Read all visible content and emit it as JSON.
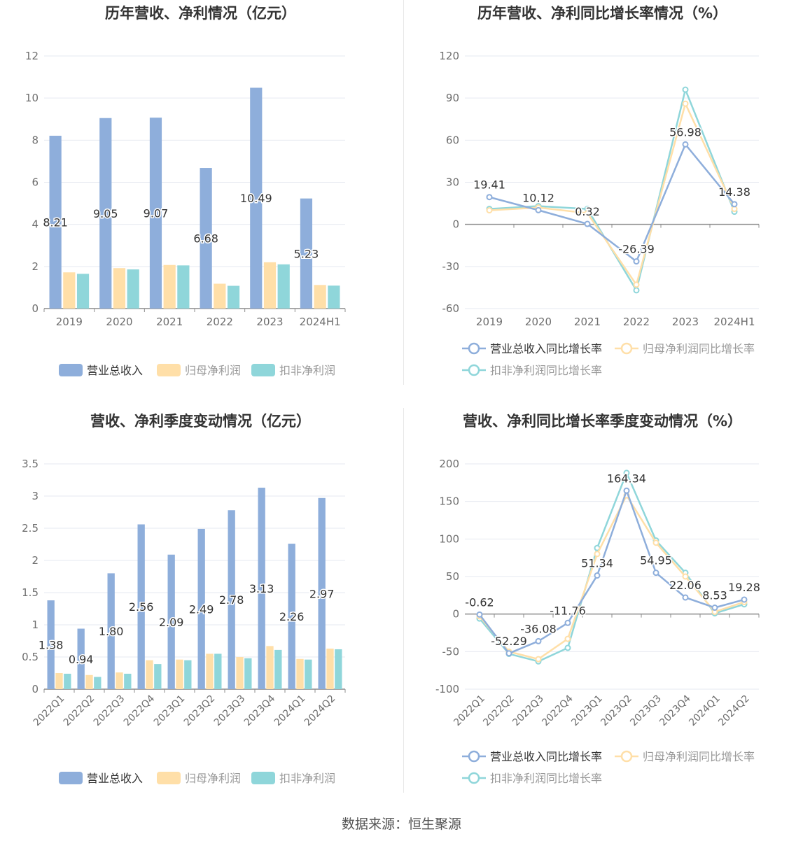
{
  "colors": {
    "revenue": "#8eaedb",
    "net_profit": "#ffdfa8",
    "deducted_profit": "#8fd6da",
    "axis": "#8c8c8c",
    "grid": "#e6e9f0",
    "tick_text": "#6e6e6e",
    "title_text": "#333333"
  },
  "source_text": "数据来源：恒生聚源",
  "chart_data": [
    {
      "type": "bar",
      "title": "历年营收、净利情况（亿元）",
      "categories": [
        "2019",
        "2020",
        "2021",
        "2022",
        "2023",
        "2024H1"
      ],
      "ylim": [
        0,
        12
      ],
      "yticks": [
        0,
        2,
        4,
        6,
        8,
        10,
        12
      ],
      "ytick_labels": [
        "0",
        "2",
        "4",
        "6",
        "8",
        "10",
        "12"
      ],
      "series": [
        {
          "name": "营业总收入",
          "values": [
            8.21,
            9.05,
            9.07,
            6.68,
            10.49,
            5.23
          ],
          "labels": [
            "8.21",
            "9.05",
            "9.07",
            "6.68",
            "10.49",
            "5.23"
          ]
        },
        {
          "name": "归母净利润",
          "values": [
            1.72,
            1.92,
            2.07,
            1.18,
            2.2,
            1.12
          ]
        },
        {
          "name": "扣非净利润",
          "values": [
            1.65,
            1.86,
            2.05,
            1.08,
            2.1,
            1.09
          ]
        }
      ],
      "legend": "bottom-center"
    },
    {
      "type": "line",
      "title": "历年营收、净利同比增长率情况（%）",
      "categories": [
        "2019",
        "2020",
        "2021",
        "2022",
        "2023",
        "2024H1"
      ],
      "ylim": [
        -60,
        120
      ],
      "yticks": [
        -60,
        -30,
        0,
        30,
        60,
        90,
        120
      ],
      "ytick_labels": [
        "-60",
        "-30",
        "0",
        "30",
        "60",
        "90",
        "120"
      ],
      "series": [
        {
          "name": "营业总收入同比增长率",
          "values": [
            19.41,
            10.12,
            0.32,
            -26.39,
            56.98,
            14.38
          ],
          "labels": [
            "19.41",
            "10.12",
            "0.32",
            "-26.39",
            "56.98",
            "14.38"
          ]
        },
        {
          "name": "归母净利润同比增长率",
          "values": [
            10,
            12,
            8,
            -43,
            86,
            11
          ]
        },
        {
          "name": "扣非净利润同比增长率",
          "values": [
            11,
            13,
            11,
            -47,
            96,
            9
          ]
        }
      ],
      "legend": "bottom-center"
    },
    {
      "type": "bar",
      "title": "营收、净利季度变动情况（亿元）",
      "categories": [
        "2022Q1",
        "2022Q2",
        "2022Q3",
        "2022Q4",
        "2023Q1",
        "2023Q2",
        "2023Q3",
        "2023Q4",
        "2024Q1",
        "2024Q2"
      ],
      "ylim": [
        0,
        3.5
      ],
      "yticks": [
        0,
        0.5,
        1,
        1.5,
        2,
        2.5,
        3,
        3.5
      ],
      "ytick_labels": [
        "0",
        "0.5",
        "1",
        "1.5",
        "2",
        "2.5",
        "3",
        "3.5"
      ],
      "series": [
        {
          "name": "营业总收入",
          "values": [
            1.38,
            0.94,
            1.8,
            2.56,
            2.09,
            2.49,
            2.78,
            3.13,
            2.26,
            2.97
          ],
          "labels": [
            "1.38",
            "0.94",
            "1.80",
            "2.56",
            "2.09",
            "2.49",
            "2.78",
            "3.13",
            "2.26",
            "2.97"
          ]
        },
        {
          "name": "归母净利润",
          "values": [
            0.25,
            0.22,
            0.26,
            0.45,
            0.46,
            0.55,
            0.5,
            0.67,
            0.47,
            0.63
          ]
        },
        {
          "name": "扣非净利润",
          "values": [
            0.24,
            0.19,
            0.24,
            0.39,
            0.45,
            0.55,
            0.48,
            0.61,
            0.46,
            0.62
          ]
        }
      ],
      "legend": "bottom-center"
    },
    {
      "type": "line",
      "title": "营收、净利同比增长率季度变动情况（%）",
      "categories": [
        "2022Q1",
        "2022Q2",
        "2022Q3",
        "2022Q4",
        "2023Q1",
        "2023Q2",
        "2023Q3",
        "2023Q4",
        "2024Q1",
        "2024Q2"
      ],
      "ylim": [
        -100,
        200
      ],
      "yticks": [
        -100,
        -50,
        0,
        50,
        100,
        150,
        200
      ],
      "ytick_labels": [
        "-100",
        "-50",
        "0",
        "50",
        "100",
        "150",
        "200"
      ],
      "series": [
        {
          "name": "营业总收入同比增长率",
          "values": [
            -0.62,
            -52.29,
            -36.08,
            -11.76,
            51.34,
            164.34,
            54.95,
            22.06,
            8.53,
            19.28
          ],
          "labels": [
            "-0.62",
            "-52.29",
            "-36.08",
            "-11.76",
            "51.34",
            "164.34",
            "54.95",
            "22.06",
            "8.53",
            "19.28"
          ]
        },
        {
          "name": "归母净利润同比增长率",
          "values": [
            -3,
            -50,
            -60,
            -33,
            80,
            158,
            95,
            50,
            3,
            16
          ]
        },
        {
          "name": "扣非净利润同比增长率",
          "values": [
            -6,
            -53,
            -63,
            -45,
            88,
            188,
            98,
            55,
            1,
            13
          ]
        }
      ],
      "legend": "bottom-center"
    }
  ]
}
